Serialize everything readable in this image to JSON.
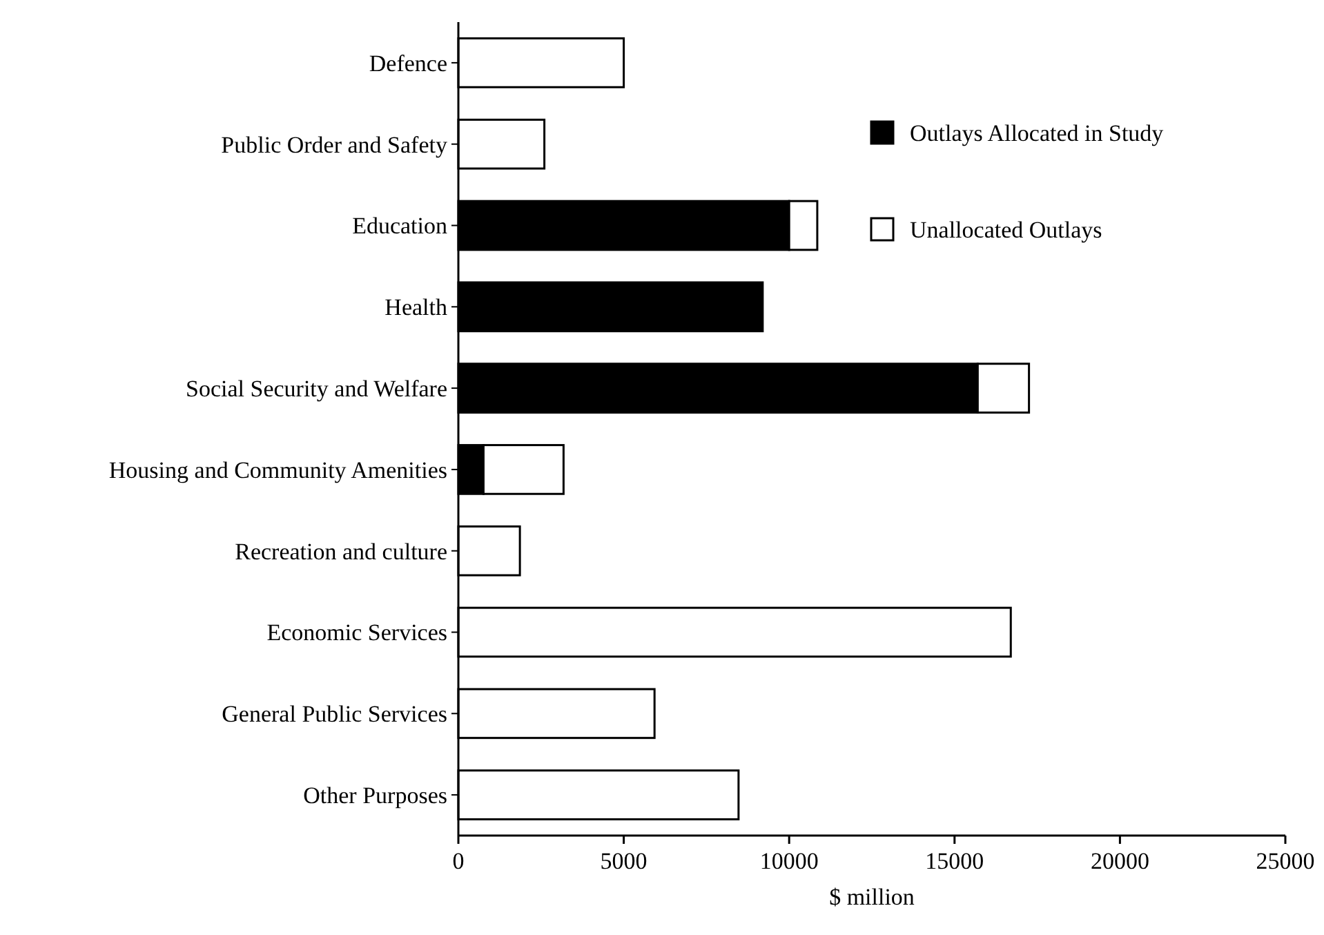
{
  "chart_data": {
    "type": "bar",
    "orientation": "horizontal",
    "stacked": true,
    "xlabel": "$ million",
    "categories": [
      "Defence",
      "Public Order and Safety",
      "Education",
      "Health",
      "Social Security and Welfare",
      "Housing and Community Amenities",
      "Recreation and culture",
      "Economic Services",
      "General Public Services",
      "Other Purposes"
    ],
    "series": [
      {
        "name": "Outlays Allocated in Study",
        "color": "#000000",
        "values": [
          0,
          0,
          10000,
          9200,
          15700,
          760,
          0,
          0,
          0,
          0
        ]
      },
      {
        "name": "Unallocated Outlays",
        "color": "#ffffff",
        "values": [
          5000,
          2600,
          850,
          0,
          1550,
          2420,
          1860,
          16700,
          5930,
          8470
        ]
      }
    ],
    "xlim": [
      0,
      25000
    ],
    "xticks": [
      0,
      5000,
      10000,
      15000,
      20000,
      25000
    ],
    "legend": "top right"
  }
}
